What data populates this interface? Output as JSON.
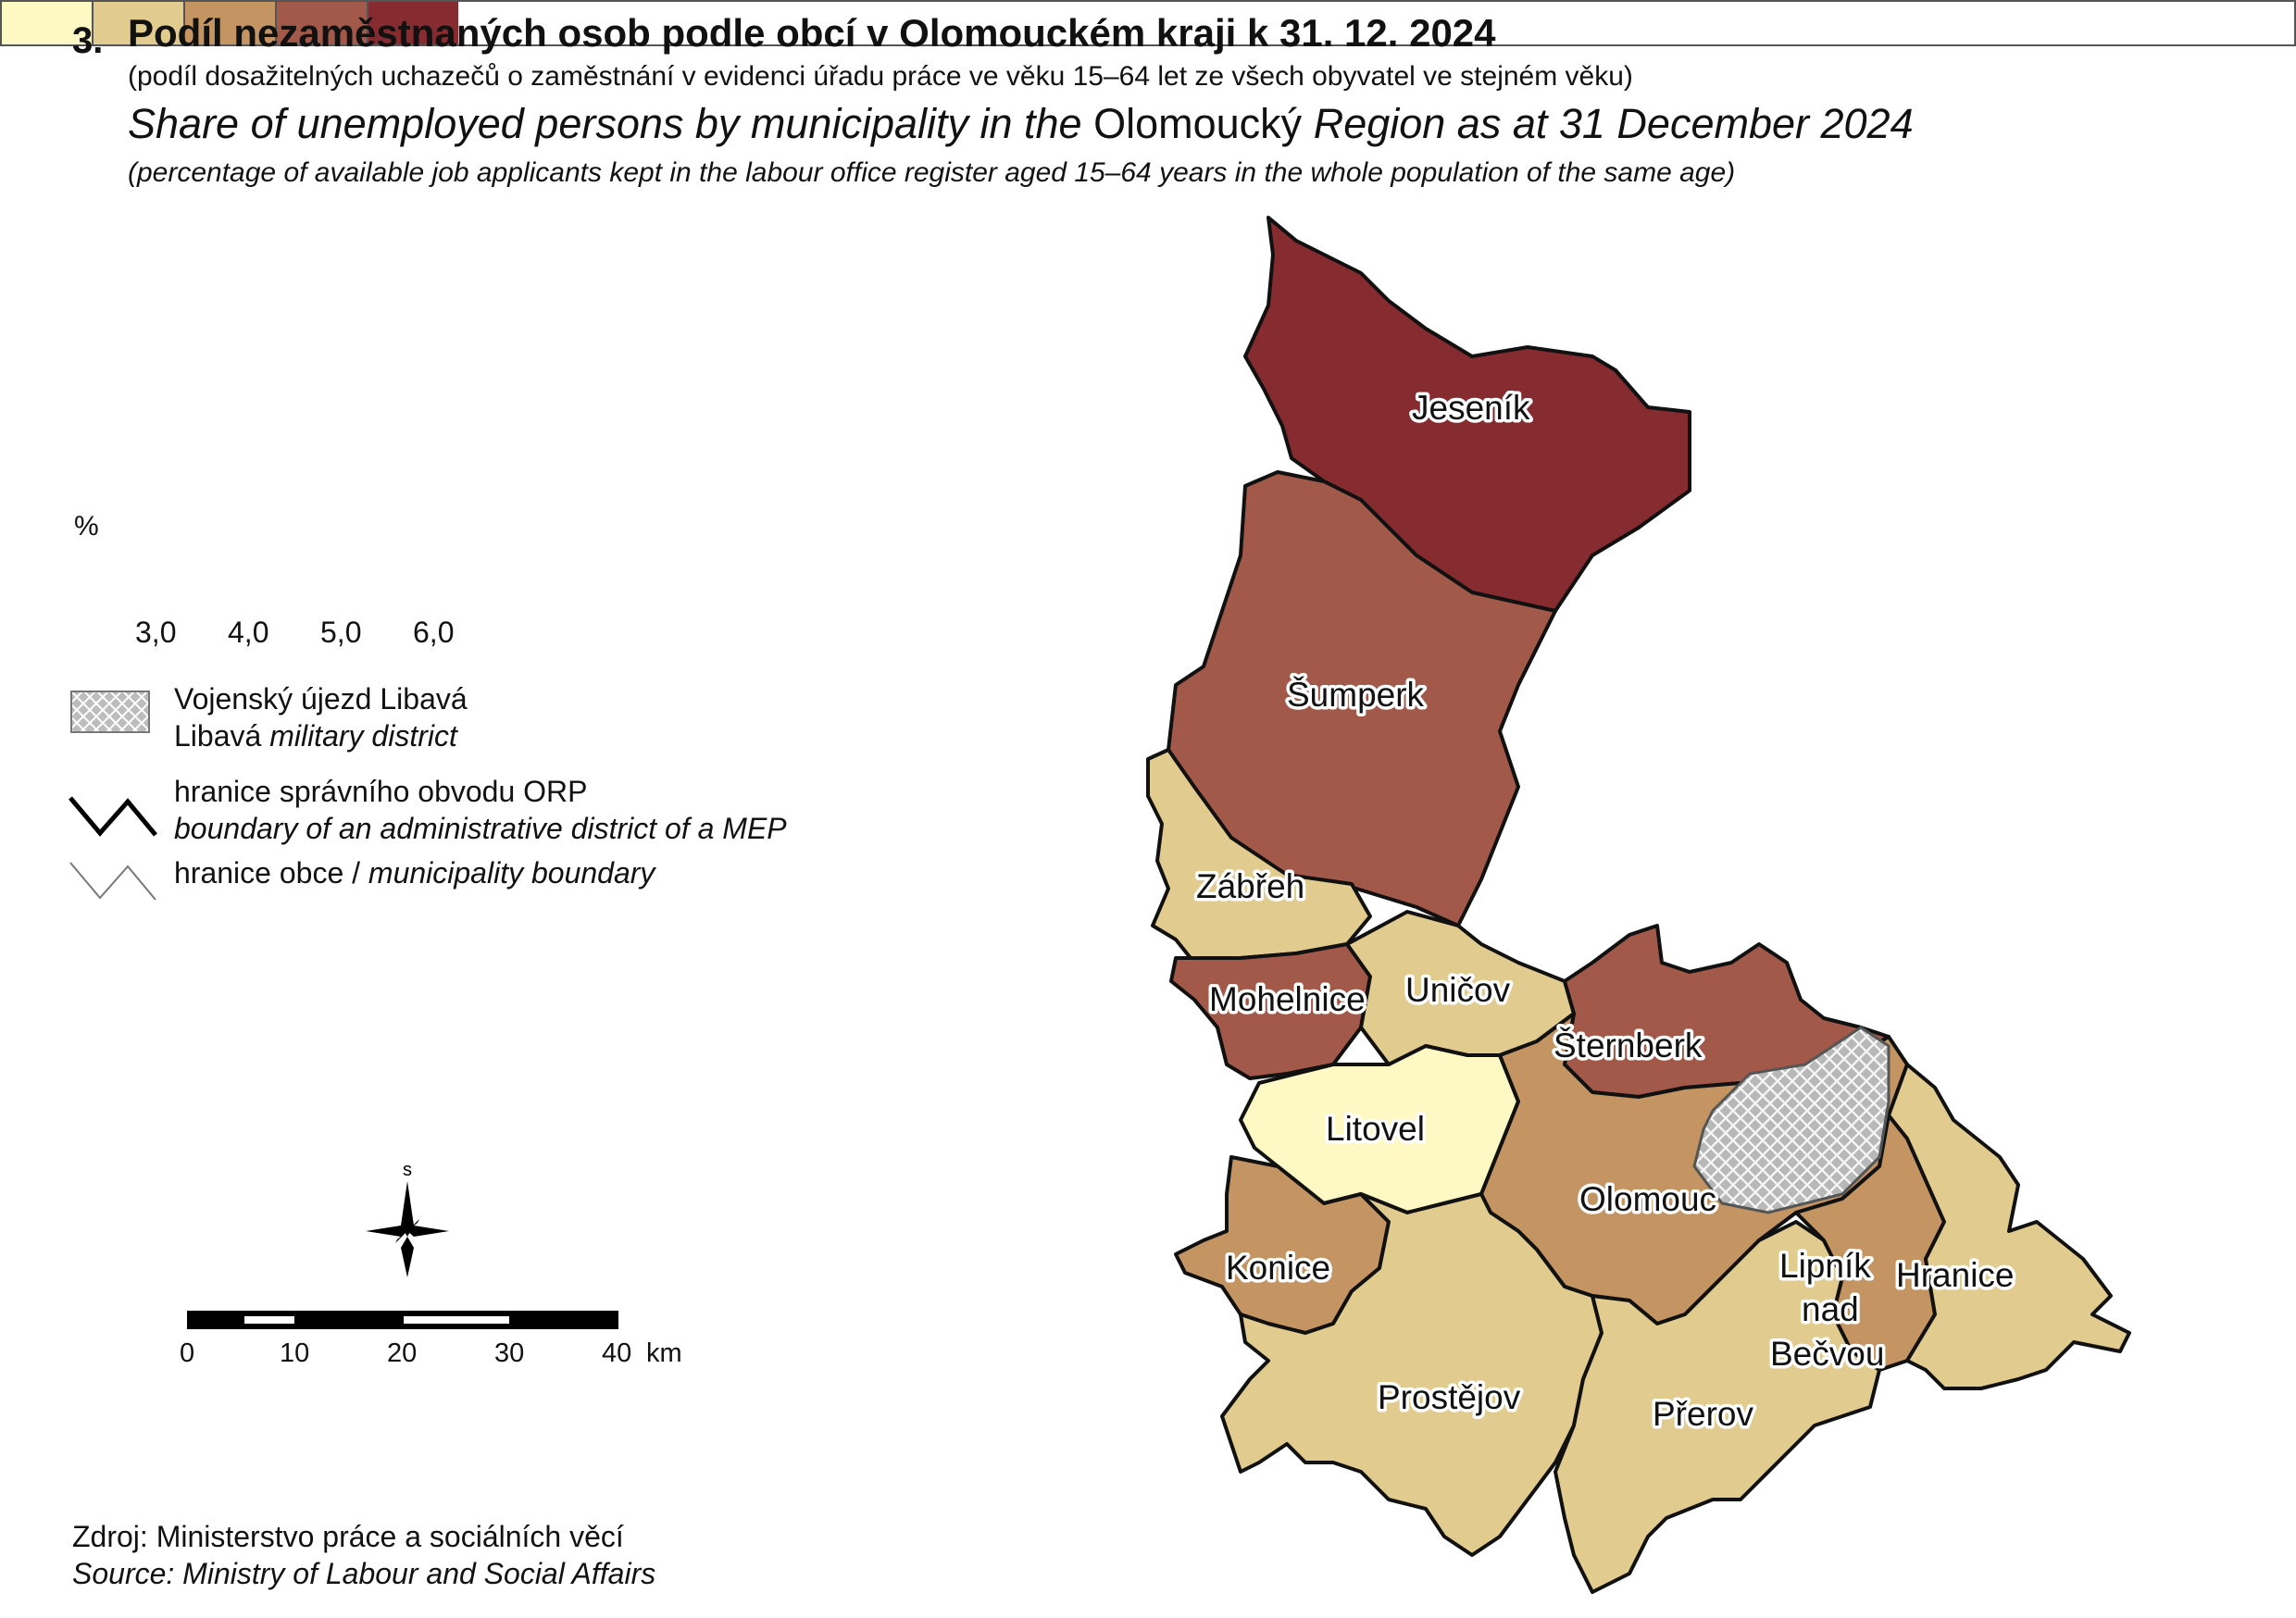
{
  "figure_number": "3.",
  "title_cz": "Podíl nezaměstnaných osob podle obcí v Olomouckém kraji k 31. 12. 2024",
  "subtitle_cz": "(podíl dosažitelných uchazečů o zaměstnání v evidenci úřadu práce ve věku 15–64 let ze všech obyvatel ve stejném věku)",
  "title_en_part1": "Share of unemployed persons by municipality in the",
  "title_en_region": "Olomoucký",
  "title_en_part2": "Region as at 31 December 2024",
  "subtitle_en": "(percentage of available job applicants kept in the labour office register aged 15–64 years in the whole population of the same age)",
  "legend": {
    "unit": "%",
    "classes": [
      {
        "color": "#fdf8c4"
      },
      {
        "color": "#e2cb8e"
      },
      {
        "color": "#c49563"
      },
      {
        "color": "#a3594a"
      },
      {
        "color": "#862b2f"
      }
    ],
    "breaks": [
      "3,0",
      "4,0",
      "5,0",
      "6,0"
    ],
    "military_cz": "Vojenský újezd Libavá",
    "military_en_name": "Libavá",
    "military_en_rest": "military district",
    "orp_cz": "hranice správního obvodu ORP",
    "orp_en": "boundary of an administrative district of a MEP",
    "muni_cz": "hranice obce /",
    "muni_en": "municipality boundary"
  },
  "north_label": "s",
  "scale_bar": {
    "labels": [
      "0",
      "10",
      "20",
      "30",
      "40"
    ],
    "unit": "km"
  },
  "source_cz": "Zdroj: Ministerstvo práce a sociálních věcí",
  "source_en": "Source: Ministry of Labour and Social Affairs",
  "districts": [
    {
      "name": "Jeseník",
      "value_class": 5
    },
    {
      "name": "Šumperk",
      "value_class": 4
    },
    {
      "name": "Zábřeh",
      "value_class": 2
    },
    {
      "name": "Mohelnice",
      "value_class": 4
    },
    {
      "name": "Uničov",
      "value_class": 2
    },
    {
      "name": "Šternberk",
      "value_class": 4
    },
    {
      "name": "Litovel",
      "value_class": 1
    },
    {
      "name": "Olomouc",
      "value_class": 3
    },
    {
      "name": "Konice",
      "value_class": 3
    },
    {
      "name": "Prostějov",
      "value_class": 2
    },
    {
      "name": "Přerov",
      "value_class": 2
    },
    {
      "name": "Lipník nad Bečvou",
      "value_class": 3
    },
    {
      "name": "Hranice",
      "value_class": 2
    }
  ]
}
